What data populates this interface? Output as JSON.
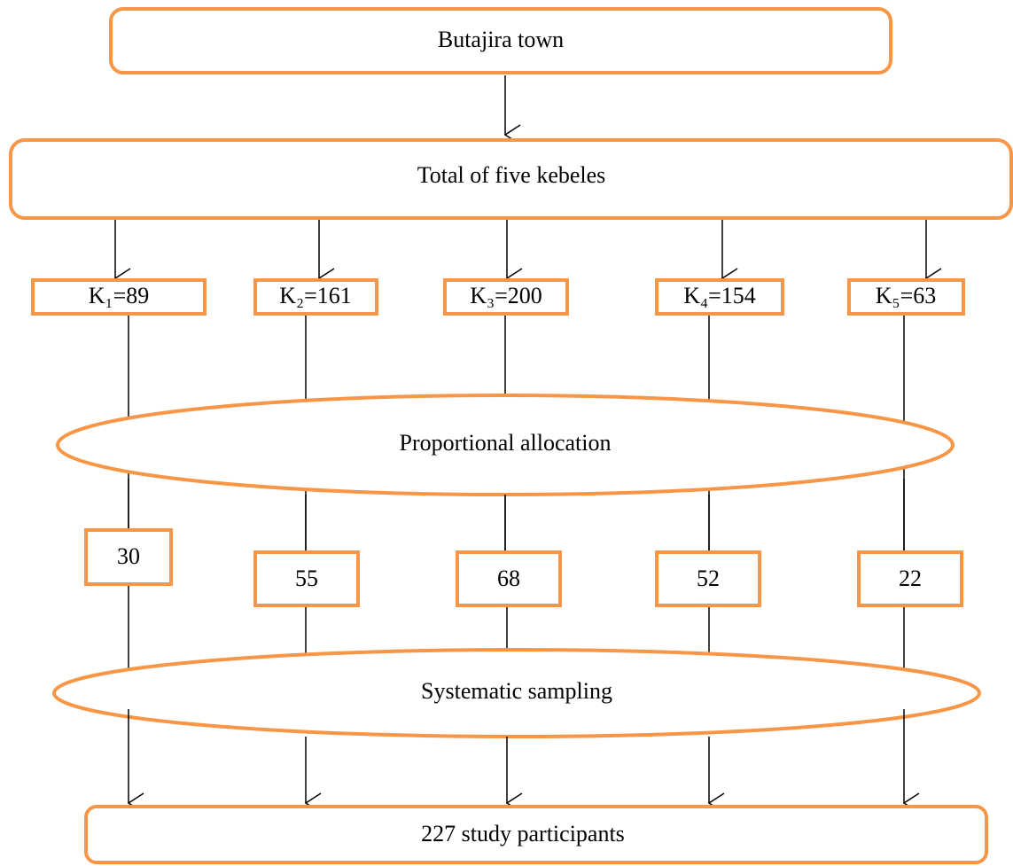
{
  "nodes": {
    "town": "Butajira town",
    "kebeles_total": "Total of five kebeles",
    "kebeles": [
      "K₁=89",
      "K₂=161",
      "K₃=200",
      "K₄=154",
      "K₅=63"
    ],
    "allocation": "Proportional allocation",
    "samples": [
      30,
      55,
      68,
      52,
      22
    ],
    "sampling": "Systematic sampling",
    "result": "227 study participants"
  }
}
